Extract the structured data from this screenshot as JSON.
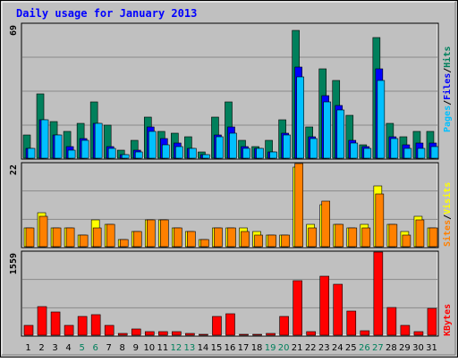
{
  "page": {
    "title": "Daily usage for January 2013"
  },
  "colors": {
    "frame": "#c0c0c0",
    "plot_bg": "#c0c0c0",
    "grid": "#8a8a8a",
    "title": "#0000ff",
    "hits": "#00805c",
    "files": "#0000ff",
    "pages": "#00c0ff",
    "visits": "#ffff00",
    "sites": "#ff8000",
    "kbytes": "#ff0000",
    "day_normal": "#000000",
    "day_weekend": "#00805c"
  },
  "legend_right": {
    "top": [
      {
        "text": "Pages",
        "color": "#00c0ff"
      },
      {
        "text": "/",
        "color": "#000000"
      },
      {
        "text": "Files",
        "color": "#0000ff"
      },
      {
        "text": "/",
        "color": "#000000"
      },
      {
        "text": "Hits",
        "color": "#00805c"
      }
    ],
    "mid": [
      {
        "text": "Sites",
        "color": "#ff8000"
      },
      {
        "text": "/",
        "color": "#000000"
      },
      {
        "text": "Visits",
        "color": "#ffff00"
      }
    ],
    "bottom": [
      {
        "text": "KBytes",
        "color": "#ff0000"
      }
    ]
  },
  "chart_data": [
    {
      "type": "bar",
      "title": "Daily usage for January 2013",
      "ylabel": "69",
      "ylim": [
        0,
        69
      ],
      "categories": [
        "1",
        "2",
        "3",
        "4",
        "5",
        "6",
        "7",
        "8",
        "9",
        "10",
        "11",
        "12",
        "13",
        "14",
        "15",
        "16",
        "17",
        "18",
        "19",
        "20",
        "21",
        "22",
        "23",
        "24",
        "25",
        "26",
        "27",
        "28",
        "29",
        "30",
        "31"
      ],
      "weekend_days": [
        "5",
        "6",
        "12",
        "13",
        "19",
        "20",
        "26",
        "27"
      ],
      "series": [
        {
          "name": "Hits",
          "values": [
            12,
            33,
            19,
            14,
            18,
            29,
            17,
            4,
            9,
            21,
            14,
            13,
            11,
            3,
            21,
            29,
            9,
            6,
            9,
            20,
            66,
            16,
            46,
            40,
            22,
            7,
            62,
            18,
            11,
            14,
            14
          ]
        },
        {
          "name": "Files",
          "values": [
            5,
            20,
            12,
            6,
            10,
            18,
            6,
            2,
            4,
            16,
            10,
            8,
            5,
            2,
            12,
            16,
            6,
            5,
            3,
            13,
            47,
            11,
            32,
            27,
            9,
            6,
            46,
            11,
            7,
            8,
            8
          ]
        },
        {
          "name": "Pages",
          "values": [
            5,
            20,
            12,
            4,
            9,
            18,
            5,
            2,
            3,
            14,
            7,
            6,
            5,
            2,
            11,
            13,
            5,
            5,
            3,
            12,
            42,
            10,
            29,
            25,
            8,
            5,
            40,
            10,
            5,
            5,
            6
          ]
        }
      ]
    },
    {
      "type": "bar",
      "ylabel": "22",
      "ylim": [
        0,
        22
      ],
      "categories": [
        "1",
        "2",
        "3",
        "4",
        "5",
        "6",
        "7",
        "8",
        "9",
        "10",
        "11",
        "12",
        "13",
        "14",
        "15",
        "16",
        "17",
        "18",
        "19",
        "20",
        "21",
        "22",
        "23",
        "24",
        "25",
        "26",
        "27",
        "28",
        "29",
        "30",
        "31"
      ],
      "series": [
        {
          "name": "Visits",
          "values": [
            5,
            9,
            5,
            5,
            3,
            7,
            6,
            2,
            4,
            7,
            7,
            5,
            4,
            2,
            5,
            5,
            5,
            4,
            3,
            3,
            21,
            6,
            11,
            6,
            5,
            6,
            16,
            6,
            4,
            8,
            5
          ]
        },
        {
          "name": "Sites",
          "values": [
            5,
            8,
            5,
            5,
            3,
            5,
            6,
            2,
            4,
            7,
            7,
            5,
            4,
            2,
            5,
            5,
            4,
            3,
            3,
            3,
            22,
            5,
            12,
            6,
            5,
            5,
            14,
            6,
            3,
            7,
            5
          ]
        }
      ]
    },
    {
      "type": "bar",
      "ylabel": "1559",
      "ylim": [
        0,
        1559
      ],
      "categories": [
        "1",
        "2",
        "3",
        "4",
        "5",
        "6",
        "7",
        "8",
        "9",
        "10",
        "11",
        "12",
        "13",
        "14",
        "15",
        "16",
        "17",
        "18",
        "19",
        "20",
        "21",
        "22",
        "23",
        "24",
        "25",
        "26",
        "27",
        "28",
        "29",
        "30",
        "31"
      ],
      "series": [
        {
          "name": "KBytes",
          "values": [
            180,
            540,
            440,
            180,
            360,
            390,
            180,
            30,
            120,
            60,
            60,
            60,
            40,
            20,
            360,
            400,
            20,
            20,
            30,
            360,
            1020,
            60,
            1110,
            960,
            450,
            90,
            1559,
            520,
            180,
            60,
            500
          ]
        }
      ]
    }
  ]
}
